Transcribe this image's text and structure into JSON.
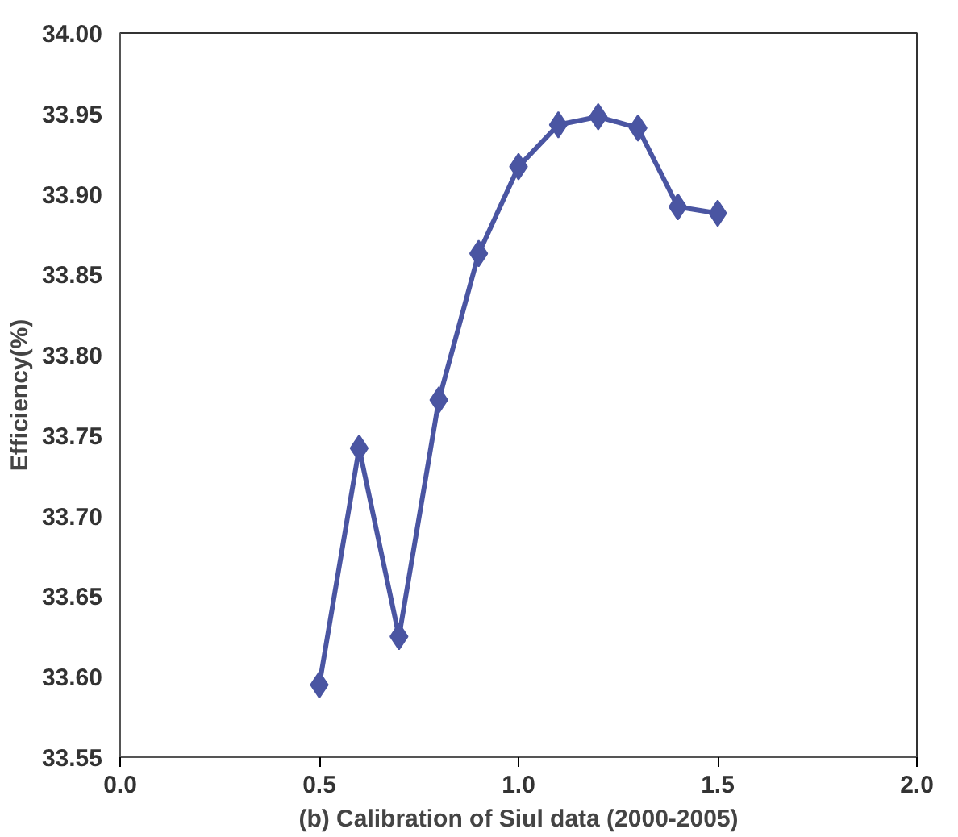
{
  "chart_data": {
    "type": "line",
    "xlabel": "(b) Calibration of Siul data (2000-2005)",
    "ylabel": "Efficiency(%)",
    "x": [
      0.5,
      0.6,
      0.7,
      0.8,
      0.9,
      1.0,
      1.1,
      1.2,
      1.3,
      1.4,
      1.5
    ],
    "series": [
      {
        "color": "#4a55a2",
        "values": [
          33.595,
          33.742,
          33.625,
          33.772,
          33.863,
          33.917,
          33.943,
          33.948,
          33.941,
          33.892,
          33.888
        ]
      }
    ],
    "xlim": [
      0.0,
      2.0
    ],
    "xticks": [
      {
        "value": 0,
        "label": "0.0"
      },
      {
        "value": 0.5,
        "label": "0.5"
      },
      {
        "value": 1,
        "label": "1.0"
      },
      {
        "value": 1.5,
        "label": "1.5"
      },
      {
        "value": 2,
        "label": "2.0"
      }
    ],
    "ylim": [
      33.55,
      34.0
    ],
    "yticks": [
      {
        "value": 33.55,
        "label": "33.55"
      },
      {
        "value": 33.6,
        "label": "33.60"
      },
      {
        "value": 33.65,
        "label": "33.65"
      },
      {
        "value": 33.7,
        "label": "33.70"
      },
      {
        "value": 33.75,
        "label": "33.75"
      },
      {
        "value": 33.8,
        "label": "33.80"
      },
      {
        "value": 33.85,
        "label": "33.85"
      },
      {
        "value": 33.9,
        "label": "33.90"
      },
      {
        "value": 33.95,
        "label": "33.95"
      },
      {
        "value": 34.0,
        "label": "34.00"
      }
    ],
    "marker": "diamond",
    "line_style": "solid",
    "grid": false
  }
}
